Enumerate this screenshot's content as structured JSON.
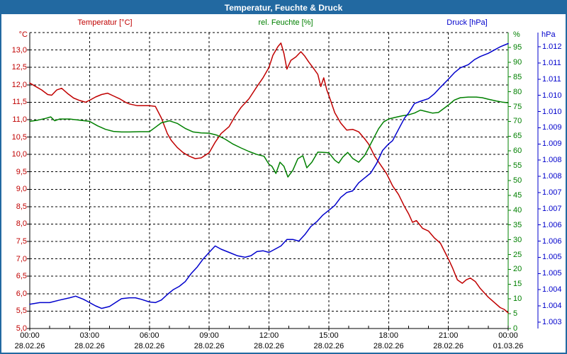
{
  "title_bar": {
    "title": "Temperatur, Feuchte & Druck"
  },
  "colors": {
    "frame": "#2269a1",
    "grid": "#000000",
    "temperature": "#c00000",
    "humidity": "#008000",
    "pressure": "#0000cc"
  },
  "chart_data": {
    "type": "line",
    "title": "Temperatur, Feuchte & Druck",
    "grid": "dashed",
    "legend_position": "top",
    "x_axis": {
      "unit": "time",
      "range_hours": [
        0,
        24
      ],
      "major_tick_hours": [
        0,
        3,
        6,
        9,
        12,
        15,
        18,
        21,
        24
      ],
      "time_labels": [
        "00:00",
        "03:00",
        "06:00",
        "09:00",
        "12:00",
        "15:00",
        "18:00",
        "21:00",
        "00:00"
      ],
      "date_labels": [
        "28.02.26",
        "28.02.26",
        "28.02.26",
        "28.02.26",
        "28.02.26",
        "28.02.26",
        "28.02.26",
        "28.02.26",
        "01.03.26"
      ]
    },
    "y_axes": {
      "temperature": {
        "unit_label": "°C",
        "color": "#c00000",
        "range_bottom_top": [
          5.0,
          13.5
        ],
        "tick_values": [
          13.0,
          12.5,
          12.0,
          11.5,
          11.0,
          10.5,
          10.0,
          9.5,
          9.0,
          8.5,
          8.0,
          7.5,
          7.0,
          6.5,
          6.0,
          5.5,
          5.0
        ],
        "tick_labels": [
          "13,0",
          "12,5",
          "12,0",
          "11,5",
          "11,0",
          "10,5",
          "10,0",
          "9,5",
          "9,0",
          "8,5",
          "8,0",
          "7,5",
          "7,0",
          "6,5",
          "6,0",
          "5,5",
          "5,0"
        ]
      },
      "humidity": {
        "unit_label": "%",
        "color": "#008000",
        "range_bottom_top": [
          0,
          100
        ],
        "tick_values": [
          95,
          90,
          85,
          80,
          75,
          70,
          65,
          60,
          55,
          50,
          45,
          40,
          35,
          30,
          25,
          20,
          15,
          10,
          5,
          0
        ],
        "tick_labels": [
          "95",
          "90",
          "85",
          "80",
          "75",
          "70",
          "65",
          "60",
          "55",
          "50",
          "45",
          "40",
          "35",
          "30",
          "25",
          "20",
          "15",
          "10",
          "5",
          "0"
        ]
      },
      "pressure": {
        "unit_label": "hPa",
        "color": "#0000cc",
        "range_bottom_top": [
          1002.8,
          1011.94
        ],
        "tick_values": [
          1011.5,
          1011.0,
          1010.5,
          1010.0,
          1009.5,
          1009.0,
          1008.5,
          1008.0,
          1007.5,
          1007.0,
          1006.5,
          1006.0,
          1005.5,
          1005.0,
          1004.5,
          1004.0,
          1003.5,
          1003.0
        ],
        "tick_labels": [
          "1.012",
          "1.011",
          "1.011",
          "1.010",
          "1.010",
          "1.009",
          "1.009",
          "1.008",
          "1.008",
          "1.007",
          "1.007",
          "1.006",
          "1.006",
          "1.005",
          "1.005",
          "1.004",
          "1.004",
          "1.003"
        ]
      }
    },
    "series": [
      {
        "name": "Temperatur [°C]",
        "axis": "temperature",
        "color": "#c00000",
        "points": [
          [
            0,
            12.05
          ],
          [
            0.3,
            11.95
          ],
          [
            0.6,
            11.85
          ],
          [
            0.9,
            11.72
          ],
          [
            1.1,
            11.7
          ],
          [
            1.35,
            11.85
          ],
          [
            1.6,
            11.9
          ],
          [
            1.9,
            11.75
          ],
          [
            2.2,
            11.62
          ],
          [
            2.5,
            11.55
          ],
          [
            2.8,
            11.5
          ],
          [
            3.05,
            11.57
          ],
          [
            3.3,
            11.65
          ],
          [
            3.6,
            11.72
          ],
          [
            3.9,
            11.76
          ],
          [
            4.2,
            11.68
          ],
          [
            4.5,
            11.6
          ],
          [
            4.8,
            11.5
          ],
          [
            5,
            11.45
          ],
          [
            5.4,
            11.4
          ],
          [
            6,
            11.4
          ],
          [
            6.3,
            11.38
          ],
          [
            6.6,
            11.05
          ],
          [
            6.9,
            10.6
          ],
          [
            7.1,
            10.4
          ],
          [
            7.4,
            10.2
          ],
          [
            7.7,
            10.05
          ],
          [
            8,
            9.95
          ],
          [
            8.3,
            9.88
          ],
          [
            8.6,
            9.9
          ],
          [
            9,
            10.05
          ],
          [
            9.3,
            10.35
          ],
          [
            9.6,
            10.6
          ],
          [
            10,
            10.8
          ],
          [
            10.3,
            11.1
          ],
          [
            10.6,
            11.35
          ],
          [
            11,
            11.6
          ],
          [
            11.4,
            11.95
          ],
          [
            11.7,
            12.2
          ],
          [
            12,
            12.5
          ],
          [
            12.2,
            12.85
          ],
          [
            12.45,
            13.1
          ],
          [
            12.6,
            13.2
          ],
          [
            12.75,
            12.9
          ],
          [
            12.9,
            12.45
          ],
          [
            13.1,
            12.7
          ],
          [
            13.35,
            12.8
          ],
          [
            13.6,
            12.95
          ],
          [
            13.8,
            12.82
          ],
          [
            14,
            12.65
          ],
          [
            14.2,
            12.5
          ],
          [
            14.45,
            12.3
          ],
          [
            14.6,
            11.95
          ],
          [
            14.75,
            12.2
          ],
          [
            14.9,
            11.85
          ],
          [
            15,
            11.7
          ],
          [
            15.3,
            11.2
          ],
          [
            15.6,
            10.9
          ],
          [
            15.9,
            10.7
          ],
          [
            16.2,
            10.72
          ],
          [
            16.5,
            10.65
          ],
          [
            16.8,
            10.45
          ],
          [
            17,
            10.3
          ],
          [
            17.3,
            9.95
          ],
          [
            17.6,
            9.7
          ],
          [
            17.9,
            9.45
          ],
          [
            18.2,
            9.1
          ],
          [
            18.5,
            8.85
          ],
          [
            18.8,
            8.5
          ],
          [
            19,
            8.3
          ],
          [
            19.2,
            8.05
          ],
          [
            19.4,
            8.1
          ],
          [
            19.7,
            7.88
          ],
          [
            20,
            7.8
          ],
          [
            20.3,
            7.6
          ],
          [
            20.6,
            7.45
          ],
          [
            21,
            7.0
          ],
          [
            21.2,
            6.75
          ],
          [
            21.45,
            6.4
          ],
          [
            21.7,
            6.3
          ],
          [
            21.9,
            6.4
          ],
          [
            22.1,
            6.45
          ],
          [
            22.35,
            6.35
          ],
          [
            22.6,
            6.15
          ],
          [
            23,
            5.9
          ],
          [
            23.3,
            5.75
          ],
          [
            23.6,
            5.6
          ],
          [
            23.8,
            5.55
          ],
          [
            24,
            5.45
          ]
        ]
      },
      {
        "name": "rel. Feuchte [%]",
        "axis": "humidity",
        "color": "#008000",
        "points": [
          [
            0,
            70
          ],
          [
            0.4,
            70.4
          ],
          [
            0.8,
            71
          ],
          [
            1.05,
            71.5
          ],
          [
            1.25,
            70.2
          ],
          [
            1.5,
            70.8
          ],
          [
            2,
            70.8
          ],
          [
            2.5,
            70.4
          ],
          [
            3,
            70
          ],
          [
            3.4,
            68.5
          ],
          [
            3.8,
            67.3
          ],
          [
            4.2,
            66.6
          ],
          [
            4.6,
            66.4
          ],
          [
            5,
            66.4
          ],
          [
            5.5,
            66.5
          ],
          [
            6,
            66.5
          ],
          [
            6.3,
            68
          ],
          [
            6.6,
            69.5
          ],
          [
            7,
            70.2
          ],
          [
            7.4,
            69.3
          ],
          [
            7.8,
            67.6
          ],
          [
            8.2,
            66.4
          ],
          [
            8.6,
            66.1
          ],
          [
            9,
            66
          ],
          [
            9.4,
            65.3
          ],
          [
            9.8,
            64
          ],
          [
            10.2,
            62.3
          ],
          [
            10.6,
            61
          ],
          [
            11,
            59.8
          ],
          [
            11.4,
            58.8
          ],
          [
            11.75,
            58.2
          ],
          [
            12,
            55.5
          ],
          [
            12.15,
            54.8
          ],
          [
            12.35,
            52.4
          ],
          [
            12.55,
            56.2
          ],
          [
            12.75,
            54.8
          ],
          [
            12.95,
            51.2
          ],
          [
            13.2,
            53.5
          ],
          [
            13.45,
            57.4
          ],
          [
            13.7,
            58.4
          ],
          [
            13.9,
            54.3
          ],
          [
            14.15,
            56.2
          ],
          [
            14.45,
            59.6
          ],
          [
            14.75,
            59.5
          ],
          [
            15,
            59.4
          ],
          [
            15.3,
            56.9
          ],
          [
            15.5,
            55.9
          ],
          [
            15.7,
            57.9
          ],
          [
            15.95,
            59.5
          ],
          [
            16.2,
            57.5
          ],
          [
            16.5,
            56.2
          ],
          [
            16.8,
            58.5
          ],
          [
            17,
            61
          ],
          [
            17.25,
            64.3
          ],
          [
            17.5,
            67.5
          ],
          [
            17.75,
            69.8
          ],
          [
            18,
            70.8
          ],
          [
            18.3,
            71.3
          ],
          [
            18.7,
            71.9
          ],
          [
            19,
            72.2
          ],
          [
            19.3,
            72.8
          ],
          [
            19.6,
            73.8
          ],
          [
            19.9,
            73.3
          ],
          [
            20.2,
            72.8
          ],
          [
            20.5,
            73
          ],
          [
            20.8,
            74.5
          ],
          [
            21,
            75.5
          ],
          [
            21.3,
            77.2
          ],
          [
            21.6,
            78
          ],
          [
            22,
            78.2
          ],
          [
            22.4,
            78.2
          ],
          [
            22.7,
            78
          ],
          [
            23,
            77.5
          ],
          [
            23.4,
            76.9
          ],
          [
            23.7,
            76.5
          ],
          [
            24,
            76.3
          ]
        ]
      },
      {
        "name": "Druck [hPa]",
        "axis": "pressure",
        "color": "#0000cc",
        "points": [
          [
            0,
            1003.55
          ],
          [
            0.5,
            1003.6
          ],
          [
            1,
            1003.6
          ],
          [
            1.5,
            1003.68
          ],
          [
            2,
            1003.75
          ],
          [
            2.3,
            1003.8
          ],
          [
            2.7,
            1003.7
          ],
          [
            3,
            1003.6
          ],
          [
            3.3,
            1003.5
          ],
          [
            3.6,
            1003.42
          ],
          [
            4,
            1003.48
          ],
          [
            4.3,
            1003.6
          ],
          [
            4.6,
            1003.72
          ],
          [
            5,
            1003.75
          ],
          [
            5.3,
            1003.75
          ],
          [
            5.6,
            1003.7
          ],
          [
            6,
            1003.62
          ],
          [
            6.3,
            1003.6
          ],
          [
            6.6,
            1003.68
          ],
          [
            6.9,
            1003.85
          ],
          [
            7.2,
            1004.0
          ],
          [
            7.5,
            1004.1
          ],
          [
            7.8,
            1004.25
          ],
          [
            8.1,
            1004.5
          ],
          [
            8.4,
            1004.7
          ],
          [
            8.7,
            1004.95
          ],
          [
            9,
            1005.15
          ],
          [
            9.3,
            1005.35
          ],
          [
            9.6,
            1005.25
          ],
          [
            10,
            1005.15
          ],
          [
            10.4,
            1005.05
          ],
          [
            10.8,
            1005.0
          ],
          [
            11.1,
            1005.05
          ],
          [
            11.4,
            1005.18
          ],
          [
            11.7,
            1005.2
          ],
          [
            12,
            1005.15
          ],
          [
            12.3,
            1005.25
          ],
          [
            12.6,
            1005.35
          ],
          [
            12.9,
            1005.55
          ],
          [
            13.2,
            1005.55
          ],
          [
            13.5,
            1005.5
          ],
          [
            13.8,
            1005.7
          ],
          [
            14.1,
            1005.95
          ],
          [
            14.4,
            1006.1
          ],
          [
            14.7,
            1006.3
          ],
          [
            15,
            1006.45
          ],
          [
            15.3,
            1006.6
          ],
          [
            15.6,
            1006.85
          ],
          [
            15.9,
            1007.0
          ],
          [
            16.2,
            1007.05
          ],
          [
            16.5,
            1007.3
          ],
          [
            16.8,
            1007.45
          ],
          [
            17.1,
            1007.6
          ],
          [
            17.4,
            1007.9
          ],
          [
            17.7,
            1008.3
          ],
          [
            18,
            1008.5
          ],
          [
            18.2,
            1008.6
          ],
          [
            18.5,
            1008.95
          ],
          [
            18.8,
            1009.3
          ],
          [
            19,
            1009.45
          ],
          [
            19.3,
            1009.75
          ],
          [
            19.6,
            1009.82
          ],
          [
            20,
            1009.9
          ],
          [
            20.3,
            1010.05
          ],
          [
            20.6,
            1010.25
          ],
          [
            21,
            1010.5
          ],
          [
            21.3,
            1010.7
          ],
          [
            21.6,
            1010.85
          ],
          [
            22,
            1010.95
          ],
          [
            22.3,
            1011.1
          ],
          [
            22.6,
            1011.2
          ],
          [
            23,
            1011.3
          ],
          [
            23.3,
            1011.4
          ],
          [
            23.6,
            1011.5
          ],
          [
            24,
            1011.6
          ]
        ]
      }
    ]
  }
}
